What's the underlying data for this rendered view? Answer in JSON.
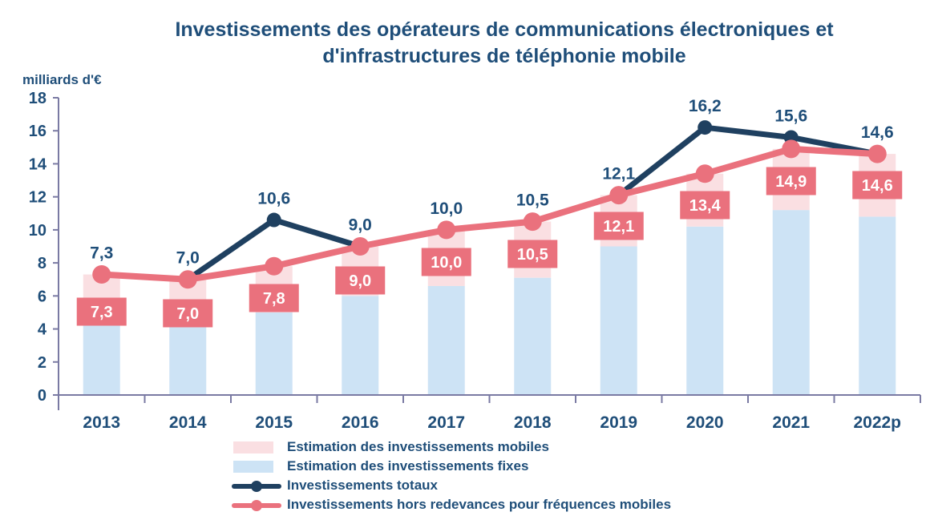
{
  "title": "Investissements des opérateurs de communications électroniques et d'infrastructures de téléphonie mobile",
  "y_axis_unit_label": "milliards d'€",
  "colors": {
    "navy_text": "#1F4E79",
    "navy_line": "#1F4060",
    "salmon": "#EA717D",
    "bar_fixed": "#CDE3F5",
    "bar_mobile": "#FADFE2",
    "axis": "#7A7AA3",
    "label_text_on_box": "#FFFFFF",
    "background": "#FFFFFF"
  },
  "legend": [
    {
      "label": "Estimation des investissements mobiles",
      "swatch": "rect",
      "color_key": "bar_mobile"
    },
    {
      "label": "Estimation des investissements fixes",
      "swatch": "rect",
      "color_key": "bar_fixed"
    },
    {
      "label": "Investissements totaux",
      "swatch": "line",
      "color_key": "navy_line"
    },
    {
      "label": "Investissements hors redevances pour fréquences mobiles",
      "swatch": "line",
      "color_key": "salmon"
    }
  ],
  "chart_data": {
    "type": "bar+line combo (stacked bars with two overlay lines)",
    "title": "Investissements des opérateurs de communications électroniques et d'infrastructures de téléphonie mobile",
    "ylabel": "milliards d'€",
    "xlabel": "",
    "ylim": [
      0,
      18
    ],
    "y_ticks": [
      0,
      2,
      4,
      6,
      8,
      10,
      12,
      14,
      16,
      18
    ],
    "grid": false,
    "legend_position": "bottom",
    "categories": [
      "2013",
      "2014",
      "2015",
      "2016",
      "2017",
      "2018",
      "2019",
      "2020",
      "2021",
      "2022p"
    ],
    "series": [
      {
        "name": "Estimation des investissements fixes",
        "type": "bar",
        "stack": "invest",
        "values": [
          4.3,
          4.2,
          5.0,
          6.0,
          6.6,
          7.1,
          9.0,
          10.2,
          11.2,
          10.8
        ]
      },
      {
        "name": "Estimation des investissements mobiles",
        "type": "bar",
        "stack": "invest",
        "values": [
          3.0,
          2.8,
          2.8,
          3.0,
          3.4,
          3.4,
          3.1,
          3.2,
          3.7,
          3.8
        ]
      },
      {
        "name": "Investissements totaux",
        "type": "line",
        "values": [
          7.3,
          7.0,
          10.6,
          9.0,
          10.0,
          10.5,
          12.1,
          16.2,
          15.6,
          14.6
        ],
        "labels": [
          "7,3",
          "7,0",
          "10,6",
          "9,0",
          "10,0",
          "10,5",
          "12,1",
          "16,2",
          "15,6",
          "14,6"
        ]
      },
      {
        "name": "Investissements hors redevances pour fréquences mobiles",
        "type": "line",
        "values": [
          7.3,
          7.0,
          7.8,
          9.0,
          10.0,
          10.5,
          12.1,
          13.4,
          14.9,
          14.6
        ],
        "labels": [
          "7,3",
          "7,0",
          "7,8",
          "9,0",
          "10,0",
          "10,5",
          "12,1",
          "13,4",
          "14,9",
          "14,6"
        ]
      }
    ]
  }
}
